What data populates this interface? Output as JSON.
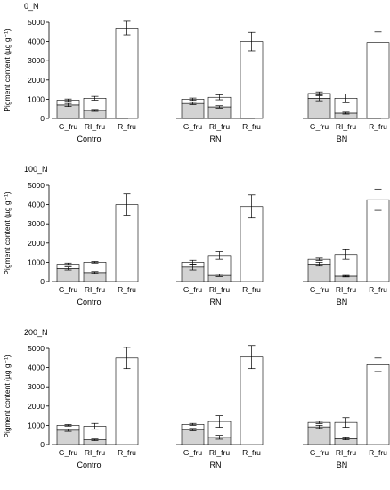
{
  "chart_data": [
    {
      "type": "bar",
      "stacked": true,
      "title": "0_N",
      "ylabel": "Pigment content (µg g⁻¹)",
      "ylim": [
        0,
        5000
      ],
      "yticks": [
        0,
        1000,
        2000,
        3000,
        4000,
        5000
      ],
      "groups": [
        {
          "label": "Control",
          "bars": [
            {
              "label": "G_fru",
              "lower": 700,
              "lower_err": 80,
              "total": 950,
              "total_err": 60
            },
            {
              "label": "RI_fru",
              "lower": 420,
              "lower_err": 50,
              "total": 1050,
              "total_err": 100
            },
            {
              "label": "R_fru",
              "lower": 0,
              "lower_err": 0,
              "total": 4700,
              "total_err": 350
            }
          ]
        },
        {
          "label": "RN",
          "bars": [
            {
              "label": "G_fru",
              "lower": 780,
              "lower_err": 60,
              "total": 1000,
              "total_err": 60
            },
            {
              "label": "RI_fru",
              "lower": 600,
              "lower_err": 60,
              "total": 1100,
              "total_err": 130
            },
            {
              "label": "R_fru",
              "lower": 0,
              "lower_err": 0,
              "total": 4000,
              "total_err": 480
            }
          ]
        },
        {
          "label": "BN",
          "bars": [
            {
              "label": "G_fru",
              "lower": 1050,
              "lower_err": 130,
              "total": 1300,
              "total_err": 80
            },
            {
              "label": "RI_fru",
              "lower": 280,
              "lower_err": 50,
              "total": 1050,
              "total_err": 230
            },
            {
              "label": "R_fru",
              "lower": 0,
              "lower_err": 0,
              "total": 3950,
              "total_err": 550
            }
          ]
        }
      ]
    },
    {
      "type": "bar",
      "stacked": true,
      "title": "100_N",
      "ylabel": "Pigment content (µg g⁻¹)",
      "ylim": [
        0,
        5000
      ],
      "yticks": [
        0,
        1000,
        2000,
        3000,
        4000,
        5000
      ],
      "groups": [
        {
          "label": "Control",
          "bars": [
            {
              "label": "G_fru",
              "lower": 680,
              "lower_err": 80,
              "total": 900,
              "total_err": 60
            },
            {
              "label": "RI_fru",
              "lower": 470,
              "lower_err": 50,
              "total": 1000,
              "total_err": 40
            },
            {
              "label": "R_fru",
              "lower": 0,
              "lower_err": 0,
              "total": 4000,
              "total_err": 550
            }
          ]
        },
        {
          "label": "RN",
          "bars": [
            {
              "label": "G_fru",
              "lower": 750,
              "lower_err": 150,
              "total": 1000,
              "total_err": 100
            },
            {
              "label": "RI_fru",
              "lower": 320,
              "lower_err": 60,
              "total": 1350,
              "total_err": 200
            },
            {
              "label": "R_fru",
              "lower": 0,
              "lower_err": 0,
              "total": 3900,
              "total_err": 600
            }
          ]
        },
        {
          "label": "BN",
          "bars": [
            {
              "label": "G_fru",
              "lower": 900,
              "lower_err": 100,
              "total": 1150,
              "total_err": 60
            },
            {
              "label": "RI_fru",
              "lower": 280,
              "lower_err": 40,
              "total": 1400,
              "total_err": 250
            },
            {
              "label": "R_fru",
              "lower": 0,
              "lower_err": 0,
              "total": 4250,
              "total_err": 550
            }
          ]
        }
      ]
    },
    {
      "type": "bar",
      "stacked": true,
      "title": "200_N",
      "ylabel": "Pigment content (µg g⁻¹)",
      "ylim": [
        0,
        5000
      ],
      "yticks": [
        0,
        1000,
        2000,
        3000,
        4000,
        5000
      ],
      "groups": [
        {
          "label": "Control",
          "bars": [
            {
              "label": "G_fru",
              "lower": 750,
              "lower_err": 60,
              "total": 1000,
              "total_err": 40
            },
            {
              "label": "RI_fru",
              "lower": 250,
              "lower_err": 40,
              "total": 950,
              "total_err": 150
            },
            {
              "label": "R_fru",
              "lower": 0,
              "lower_err": 0,
              "total": 4500,
              "total_err": 550
            }
          ]
        },
        {
          "label": "RN",
          "bars": [
            {
              "label": "G_fru",
              "lower": 780,
              "lower_err": 60,
              "total": 1050,
              "total_err": 50
            },
            {
              "label": "RI_fru",
              "lower": 380,
              "lower_err": 100,
              "total": 1200,
              "total_err": 300
            },
            {
              "label": "R_fru",
              "lower": 0,
              "lower_err": 0,
              "total": 4550,
              "total_err": 600
            }
          ]
        },
        {
          "label": "BN",
          "bars": [
            {
              "label": "G_fru",
              "lower": 920,
              "lower_err": 80,
              "total": 1150,
              "total_err": 60
            },
            {
              "label": "RI_fru",
              "lower": 300,
              "lower_err": 50,
              "total": 1150,
              "total_err": 250
            },
            {
              "label": "R_fru",
              "lower": 0,
              "lower_err": 0,
              "total": 4150,
              "total_err": 350
            }
          ]
        }
      ]
    }
  ],
  "colors": {
    "lower_fill": "#d3d3d3",
    "upper_fill": "#ffffff",
    "stroke": "#000000"
  }
}
